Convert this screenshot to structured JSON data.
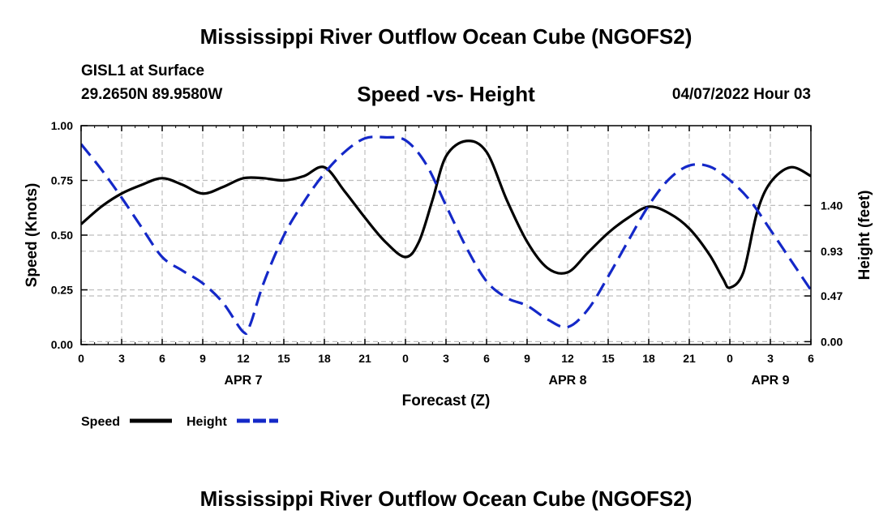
{
  "header": {
    "main_title": "Mississippi River Outflow Ocean Cube (NGOFS2)",
    "station_name": "GISL1 at Surface",
    "station_coords": "29.2650N  89.9580W",
    "chart_title": "Speed -vs- Height",
    "date": "04/07/2022 Hour 03"
  },
  "footer": {
    "title": "Mississippi River Outflow Ocean Cube (NGOFS2)"
  },
  "chart_data": {
    "type": "line",
    "title": "Speed -vs- Height",
    "xlabel": "Forecast (Z)",
    "ylabel": "Speed (Knots)",
    "y2label": "Height (feet)",
    "xlim": [
      0,
      54
    ],
    "ylim": [
      0,
      1.0
    ],
    "y2lim": [
      -0.03,
      2.22
    ],
    "x_ticks": [
      0,
      3,
      6,
      9,
      12,
      15,
      18,
      21,
      24,
      27,
      30,
      33,
      36,
      39,
      42,
      45,
      48,
      51,
      54
    ],
    "x_tick_labels": [
      "0",
      "3",
      "6",
      "9",
      "12",
      "15",
      "18",
      "21",
      "0",
      "3",
      "6",
      "9",
      "12",
      "15",
      "18",
      "21",
      "0",
      "3",
      "6"
    ],
    "date_labels": [
      {
        "x": 12,
        "label": "APR 7"
      },
      {
        "x": 36,
        "label": "APR 8"
      },
      {
        "x": 51,
        "label": "APR 9"
      }
    ],
    "y_ticks": [
      0.0,
      0.25,
      0.5,
      0.75,
      1.0
    ],
    "y_tick_labels": [
      "0.00",
      "0.25",
      "0.50",
      "0.75",
      "1.00"
    ],
    "y2_ticks": [
      0.0,
      0.47,
      0.93,
      1.4
    ],
    "y2_tick_labels": [
      "0.00",
      "0.47",
      "0.93",
      "1.40"
    ],
    "grid": true,
    "legend": {
      "placement": "bottom-left",
      "entries": [
        "Speed",
        "Height"
      ]
    },
    "series": [
      {
        "name": "Speed",
        "axis": "left",
        "color": "#000000",
        "dash": "solid",
        "x": [
          0,
          1.5,
          3,
          4.5,
          6,
          7.5,
          9,
          10.5,
          12,
          13.5,
          15,
          16.5,
          18,
          19.5,
          21,
          22.5,
          24,
          25,
          26,
          27,
          28.5,
          30,
          31.5,
          33,
          34.5,
          36,
          37.5,
          39,
          40.5,
          42,
          43.5,
          45,
          46.5,
          47.5,
          48,
          49,
          50,
          51,
          52.5,
          54
        ],
        "values": [
          0.55,
          0.63,
          0.69,
          0.73,
          0.76,
          0.73,
          0.69,
          0.72,
          0.76,
          0.76,
          0.75,
          0.77,
          0.81,
          0.7,
          0.58,
          0.47,
          0.4,
          0.47,
          0.66,
          0.86,
          0.93,
          0.88,
          0.66,
          0.47,
          0.35,
          0.33,
          0.42,
          0.51,
          0.58,
          0.63,
          0.6,
          0.53,
          0.41,
          0.3,
          0.26,
          0.33,
          0.6,
          0.74,
          0.81,
          0.77
        ]
      },
      {
        "name": "Height",
        "axis": "right",
        "color": "#1428c8",
        "dash": "dashed",
        "x": [
          0,
          1.5,
          3,
          4.5,
          6,
          7.5,
          9,
          10.5,
          12,
          12.5,
          13.5,
          15,
          16.5,
          18,
          19.5,
          21,
          22.5,
          24,
          25.5,
          27,
          28.5,
          30,
          31.5,
          33,
          34.5,
          36,
          37.5,
          39,
          40.5,
          42,
          43.5,
          45,
          46.5,
          48,
          49.5,
          51,
          52.5,
          54
        ],
        "values": [
          2.03,
          1.77,
          1.48,
          1.17,
          0.87,
          0.73,
          0.6,
          0.4,
          0.1,
          0.17,
          0.6,
          1.09,
          1.44,
          1.73,
          1.95,
          2.09,
          2.1,
          2.07,
          1.83,
          1.4,
          0.97,
          0.62,
          0.45,
          0.37,
          0.23,
          0.15,
          0.33,
          0.67,
          1.04,
          1.4,
          1.67,
          1.81,
          1.8,
          1.66,
          1.45,
          1.15,
          0.84,
          0.53
        ]
      }
    ]
  }
}
